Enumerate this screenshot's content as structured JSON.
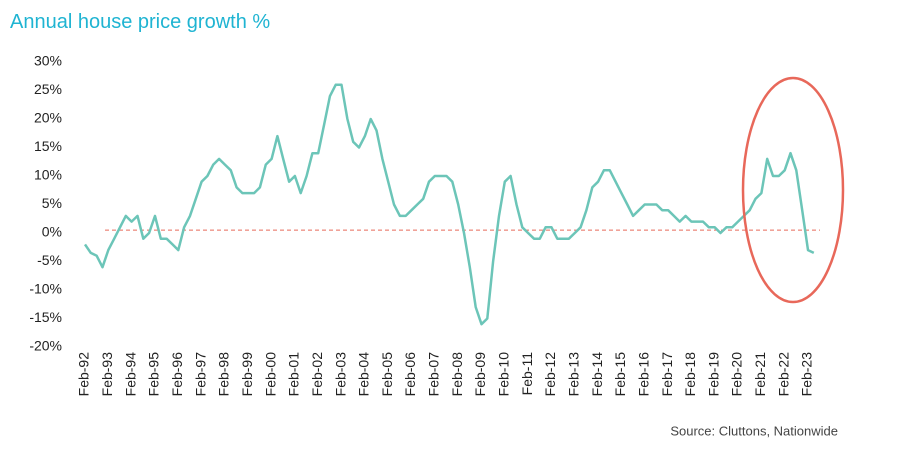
{
  "chart_data": {
    "type": "line",
    "title": "Annual house price growth %",
    "source": "Source: Cluttons, Nationwide",
    "categories": [
      "Feb-92",
      null,
      null,
      null,
      "Feb-93",
      null,
      null,
      null,
      "Feb-94",
      null,
      null,
      null,
      "Feb-95",
      null,
      null,
      null,
      "Feb-96",
      null,
      null,
      null,
      "Feb-97",
      null,
      null,
      null,
      "Feb-98",
      null,
      null,
      null,
      "Feb-99",
      null,
      null,
      null,
      "Feb-00",
      null,
      null,
      null,
      "Feb-01",
      null,
      null,
      null,
      "Feb-02",
      null,
      null,
      null,
      "Feb-03",
      null,
      null,
      null,
      "Feb-04",
      null,
      null,
      null,
      "Feb-05",
      null,
      null,
      null,
      "Feb-06",
      null,
      null,
      null,
      "Feb-07",
      null,
      null,
      null,
      "Feb-08",
      null,
      null,
      null,
      "Feb-09",
      null,
      null,
      null,
      "Feb-10",
      null,
      null,
      null,
      "Feb-11",
      null,
      null,
      null,
      "Feb-12",
      null,
      null,
      null,
      "Feb-13",
      null,
      null,
      null,
      "Feb-14",
      null,
      null,
      null,
      "Feb-15",
      null,
      null,
      null,
      "Feb-16",
      null,
      null,
      null,
      "Feb-17",
      null,
      null,
      null,
      "Feb-18",
      null,
      null,
      null,
      "Feb-19",
      null,
      null,
      null,
      "Feb-20",
      null,
      null,
      null,
      "Feb-21",
      null,
      null,
      null,
      "Feb-22",
      null,
      null,
      null,
      "Feb-23",
      null
    ],
    "series": [
      {
        "name": "Annual house price growth",
        "color": "#6cc5b8",
        "values": [
          -2,
          -3.5,
          -4,
          -6,
          -3,
          -1,
          1,
          3,
          2,
          3,
          -1,
          0,
          3,
          -1,
          -1,
          -2,
          -3,
          1,
          3,
          6,
          9,
          10,
          12,
          13,
          12,
          11,
          8,
          7,
          7,
          7,
          8,
          12,
          13,
          17,
          13,
          9,
          10,
          7,
          10,
          14,
          14,
          19,
          24,
          26,
          26,
          20,
          16,
          15,
          17,
          20,
          18,
          13,
          9,
          5,
          3,
          3,
          4,
          5,
          6,
          9,
          10,
          10,
          10,
          9,
          5,
          0,
          -6,
          -13,
          -16,
          -15,
          -5,
          3,
          9,
          10,
          5,
          1,
          0,
          -1,
          -1,
          1,
          1,
          -1,
          -1,
          -1,
          0,
          1,
          4,
          8,
          9,
          11,
          11,
          9,
          7,
          5,
          3,
          4,
          5,
          5,
          5,
          4,
          4,
          3,
          2,
          3,
          2,
          2,
          2,
          1,
          1,
          0,
          1,
          1,
          2,
          3,
          4,
          6,
          7,
          13,
          10,
          10,
          11,
          14,
          11,
          4,
          -3,
          -3.5
        ]
      }
    ],
    "reference_line": {
      "value": 0.5,
      "color": "#e86a5a"
    },
    "ylim": [
      -20,
      30
    ],
    "yticks": [
      {
        "value": -20,
        "label": "-20%"
      },
      {
        "value": -15,
        "label": "-15%"
      },
      {
        "value": -10,
        "label": "-10%"
      },
      {
        "value": -5,
        "label": "-5%"
      },
      {
        "value": 0,
        "label": "0%"
      },
      {
        "value": 5,
        "label": "5%"
      },
      {
        "value": 10,
        "label": "10%"
      },
      {
        "value": 15,
        "label": "15%"
      },
      {
        "value": 20,
        "label": "20%"
      },
      {
        "value": 25,
        "label": "25%"
      },
      {
        "value": 30,
        "label": "30%"
      }
    ]
  }
}
